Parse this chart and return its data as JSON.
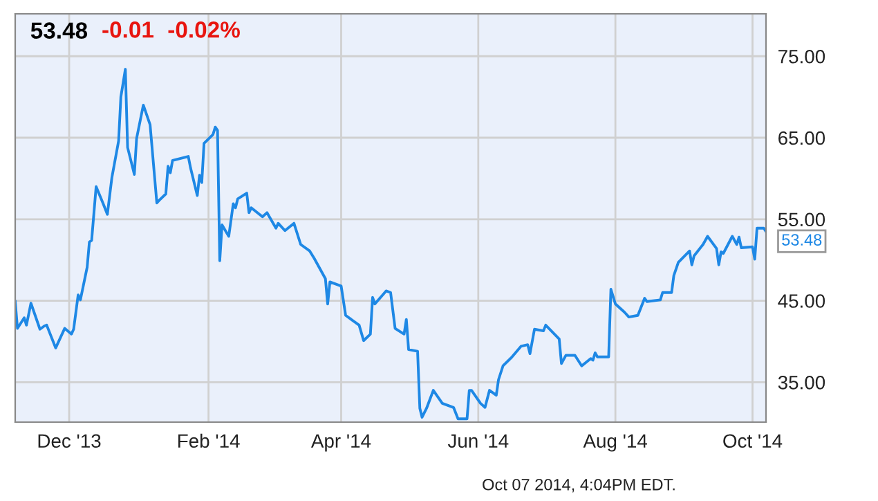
{
  "chart_data": {
    "type": "line",
    "title": "53.48",
    "annotations": [
      "-0.01",
      "-0.02%",
      "Oct 07 2014, 4:04PM EDT."
    ],
    "x": [
      "2013-11-07",
      "2013-11-08",
      "2013-11-11",
      "2013-11-12",
      "2013-11-14",
      "2013-11-18",
      "2013-11-20",
      "2013-11-21",
      "2013-11-25",
      "2013-11-29",
      "2013-12-02",
      "2013-12-03",
      "2013-12-05",
      "2013-12-06",
      "2013-12-09",
      "2013-12-10",
      "2013-12-11",
      "2013-12-13",
      "2013-12-16",
      "2013-12-18",
      "2013-12-20",
      "2013-12-23",
      "2013-12-24",
      "2013-12-26",
      "2013-12-27",
      "2013-12-30",
      "2013-12-31",
      "2014-01-03",
      "2014-01-06",
      "2014-01-09",
      "2014-01-10",
      "2014-01-13",
      "2014-01-14",
      "2014-01-15",
      "2014-01-16",
      "2014-01-23",
      "2014-01-24",
      "2014-01-27",
      "2014-01-28",
      "2014-01-29",
      "2014-01-30",
      "2014-02-03",
      "2014-02-04",
      "2014-02-05",
      "2014-02-06",
      "2014-02-07",
      "2014-02-10",
      "2014-02-12",
      "2014-02-13",
      "2014-02-14",
      "2014-02-18",
      "2014-02-19",
      "2014-02-20",
      "2014-02-25",
      "2014-02-27",
      "2014-03-03",
      "2014-03-04",
      "2014-03-07",
      "2014-03-11",
      "2014-03-14",
      "2014-03-18",
      "2014-03-20",
      "2014-03-25",
      "2014-03-26",
      "2014-03-27",
      "2014-04-01",
      "2014-04-03",
      "2014-04-09",
      "2014-04-11",
      "2014-04-14",
      "2014-04-15",
      "2014-04-16",
      "2014-04-21",
      "2014-04-23",
      "2014-04-25",
      "2014-04-29",
      "2014-04-30",
      "2014-05-01",
      "2014-05-05",
      "2014-05-06",
      "2014-05-07",
      "2014-05-09",
      "2014-05-12",
      "2014-05-16",
      "2014-05-21",
      "2014-05-23",
      "2014-05-27",
      "2014-05-28",
      "2014-05-29",
      "2014-06-02",
      "2014-06-04",
      "2014-06-06",
      "2014-06-09",
      "2014-06-10",
      "2014-06-12",
      "2014-06-16",
      "2014-06-20",
      "2014-06-23",
      "2014-06-24",
      "2014-06-26",
      "2014-06-30",
      "2014-07-01",
      "2014-07-07",
      "2014-07-08",
      "2014-07-10",
      "2014-07-14",
      "2014-07-17",
      "2014-07-21",
      "2014-07-22",
      "2014-07-23",
      "2014-07-24",
      "2014-07-29",
      "2014-07-30",
      "2014-08-01",
      "2014-08-05",
      "2014-08-07",
      "2014-08-11",
      "2014-08-14",
      "2014-08-15",
      "2014-08-21",
      "2014-08-22",
      "2014-08-26",
      "2014-08-27",
      "2014-08-29",
      "2014-09-03",
      "2014-09-04",
      "2014-09-05",
      "2014-09-09",
      "2014-09-11",
      "2014-09-15",
      "2014-09-16",
      "2014-09-17",
      "2014-09-18",
      "2014-09-22",
      "2014-09-24",
      "2014-09-25",
      "2014-09-26",
      "2014-10-01",
      "2014-10-02",
      "2014-10-03",
      "2014-10-06",
      "2014-10-07"
    ],
    "series": [
      {
        "color": "#1e88e5",
        "values": [
          44.9,
          41.6,
          42.9,
          42.0,
          44.7,
          41.5,
          41.9,
          42.0,
          39.2,
          41.6,
          40.9,
          41.5,
          45.7,
          45.1,
          49.1,
          52.2,
          52.4,
          59.0,
          57.0,
          55.6,
          60.1,
          64.6,
          70.0,
          73.4,
          63.8,
          60.5,
          64.9,
          69.0,
          66.6,
          57.0,
          57.3,
          58.1,
          61.5,
          60.7,
          62.2,
          62.7,
          61.3,
          57.9,
          60.4,
          59.5,
          64.3,
          65.4,
          66.3,
          65.9,
          49.9,
          54.3,
          52.9,
          56.9,
          56.4,
          57.5,
          58.2,
          55.8,
          56.4,
          55.3,
          55.8,
          53.9,
          54.5,
          53.6,
          54.5,
          51.9,
          51.1,
          50.2,
          47.7,
          44.6,
          47.3,
          46.8,
          43.2,
          42.0,
          40.1,
          40.9,
          45.4,
          44.6,
          46.2,
          46.0,
          41.6,
          40.9,
          42.7,
          39.0,
          38.8,
          31.8,
          30.7,
          31.8,
          34.0,
          32.4,
          31.9,
          30.5,
          30.5,
          34.0,
          34.0,
          32.4,
          31.9,
          34.0,
          33.4,
          35.3,
          37.0,
          38.1,
          39.4,
          39.6,
          38.5,
          41.5,
          41.3,
          42.0,
          40.3,
          37.3,
          38.3,
          38.3,
          37.0,
          37.9,
          37.7,
          38.6,
          38.1,
          38.1,
          46.4,
          44.6,
          43.6,
          43.0,
          43.2,
          45.3,
          44.9,
          45.1,
          46.0,
          46.0,
          48.1,
          49.7,
          51.1,
          49.4,
          50.5,
          51.9,
          52.9,
          51.4,
          49.4,
          51.0,
          50.8,
          52.9,
          51.9,
          52.8,
          51.5,
          51.6,
          50.1,
          53.9,
          53.9,
          53.48
        ],
        "value_labels": [
          null,
          null,
          null,
          null,
          null,
          null,
          null,
          null,
          null,
          null,
          null,
          null,
          null,
          null,
          null,
          null,
          null,
          null,
          null,
          null,
          null,
          null,
          null,
          null,
          null,
          null,
          null,
          null,
          null,
          null,
          null,
          null,
          null,
          null,
          null,
          null,
          null,
          null,
          null,
          null,
          null,
          null,
          null,
          null,
          null,
          null,
          null,
          null,
          null,
          null,
          null,
          null,
          null,
          null,
          null,
          null,
          null,
          null,
          null,
          null,
          null,
          null,
          null,
          null,
          null,
          null,
          null,
          null,
          null,
          null,
          null,
          null,
          null,
          null,
          null,
          null,
          null,
          null,
          null,
          null,
          null,
          null,
          null,
          null,
          null,
          null,
          null,
          null,
          null,
          null,
          null,
          null,
          null,
          null,
          null,
          null,
          null,
          null,
          null,
          null,
          null,
          null,
          null,
          null,
          null,
          null,
          null,
          null,
          null,
          null,
          null,
          null,
          null,
          null,
          null,
          null,
          null,
          null,
          null,
          null,
          null,
          null,
          null,
          null,
          null,
          null,
          null,
          null,
          null,
          null,
          null,
          null,
          null,
          null,
          null,
          null,
          null,
          null,
          null,
          null,
          null,
          "53.48"
        ]
      }
    ],
    "xlim": [
      "2013-11-07",
      "2014-10-07"
    ],
    "xticks": [
      {
        "value": "2013-12-01",
        "label": "Dec '13"
      },
      {
        "value": "2014-02-01",
        "label": "Feb '14"
      },
      {
        "value": "2014-04-01",
        "label": "Apr '14"
      },
      {
        "value": "2014-06-01",
        "label": "Jun '14"
      },
      {
        "value": "2014-08-01",
        "label": "Aug '14"
      },
      {
        "value": "2014-10-01",
        "label": "Oct '14"
      }
    ],
    "ylim": [
      30.1,
      80.2
    ],
    "yticks": [
      {
        "value": 35,
        "label": "35.00"
      },
      {
        "value": 45,
        "label": "45.00"
      },
      {
        "value": 55,
        "label": "55.00"
      },
      {
        "value": 65,
        "label": "65.00"
      },
      {
        "value": 75,
        "label": "75.00"
      }
    ],
    "grid": true,
    "legend": false,
    "marker": "none",
    "line_style": "solid"
  }
}
